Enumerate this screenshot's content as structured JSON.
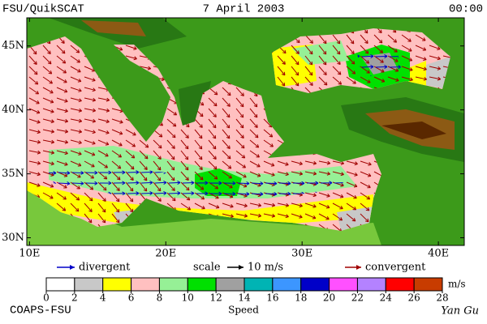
{
  "header": {
    "left": "FSU/QuikSCAT",
    "date": "7 April 2003",
    "time": "00:00"
  },
  "map": {
    "xlim": [
      9.8,
      41.9
    ],
    "ylim": [
      29.4,
      47.2
    ],
    "lon_ticks": [
      {
        "value": 10,
        "label": "10E"
      },
      {
        "value": 20,
        "label": "20E"
      },
      {
        "value": 30,
        "label": "30E"
      },
      {
        "value": 40,
        "label": "40E"
      }
    ],
    "lat_ticks": [
      {
        "value": 30,
        "label": "30N"
      },
      {
        "value": 35,
        "label": "35N"
      },
      {
        "value": 40,
        "label": "40N"
      },
      {
        "value": 45,
        "label": "45N"
      }
    ]
  },
  "legend": {
    "divergent": "divergent",
    "scale_label": "scale",
    "scale_value": "10 m/s",
    "convergent": "convergent",
    "divergent_color": "#0000c8",
    "convergent_color": "#a00000"
  },
  "colorbar": {
    "title": "Speed",
    "unit": "m/s",
    "ticks": [
      0,
      2,
      4,
      6,
      8,
      10,
      12,
      14,
      16,
      18,
      20,
      22,
      24,
      26,
      28
    ],
    "colors": [
      "#ffffff",
      "#c8c8c8",
      "#ffff00",
      "#ffc0c0",
      "#96f096",
      "#00e000",
      "#a0a0a0",
      "#00b4b4",
      "#3c96ff",
      "#0000c8",
      "#ff50ff",
      "#b482ff",
      "#ff0000",
      "#c83c00",
      "#000000"
    ]
  },
  "footer": {
    "left": "COAPS-FSU",
    "right": "Yan Gu"
  }
}
